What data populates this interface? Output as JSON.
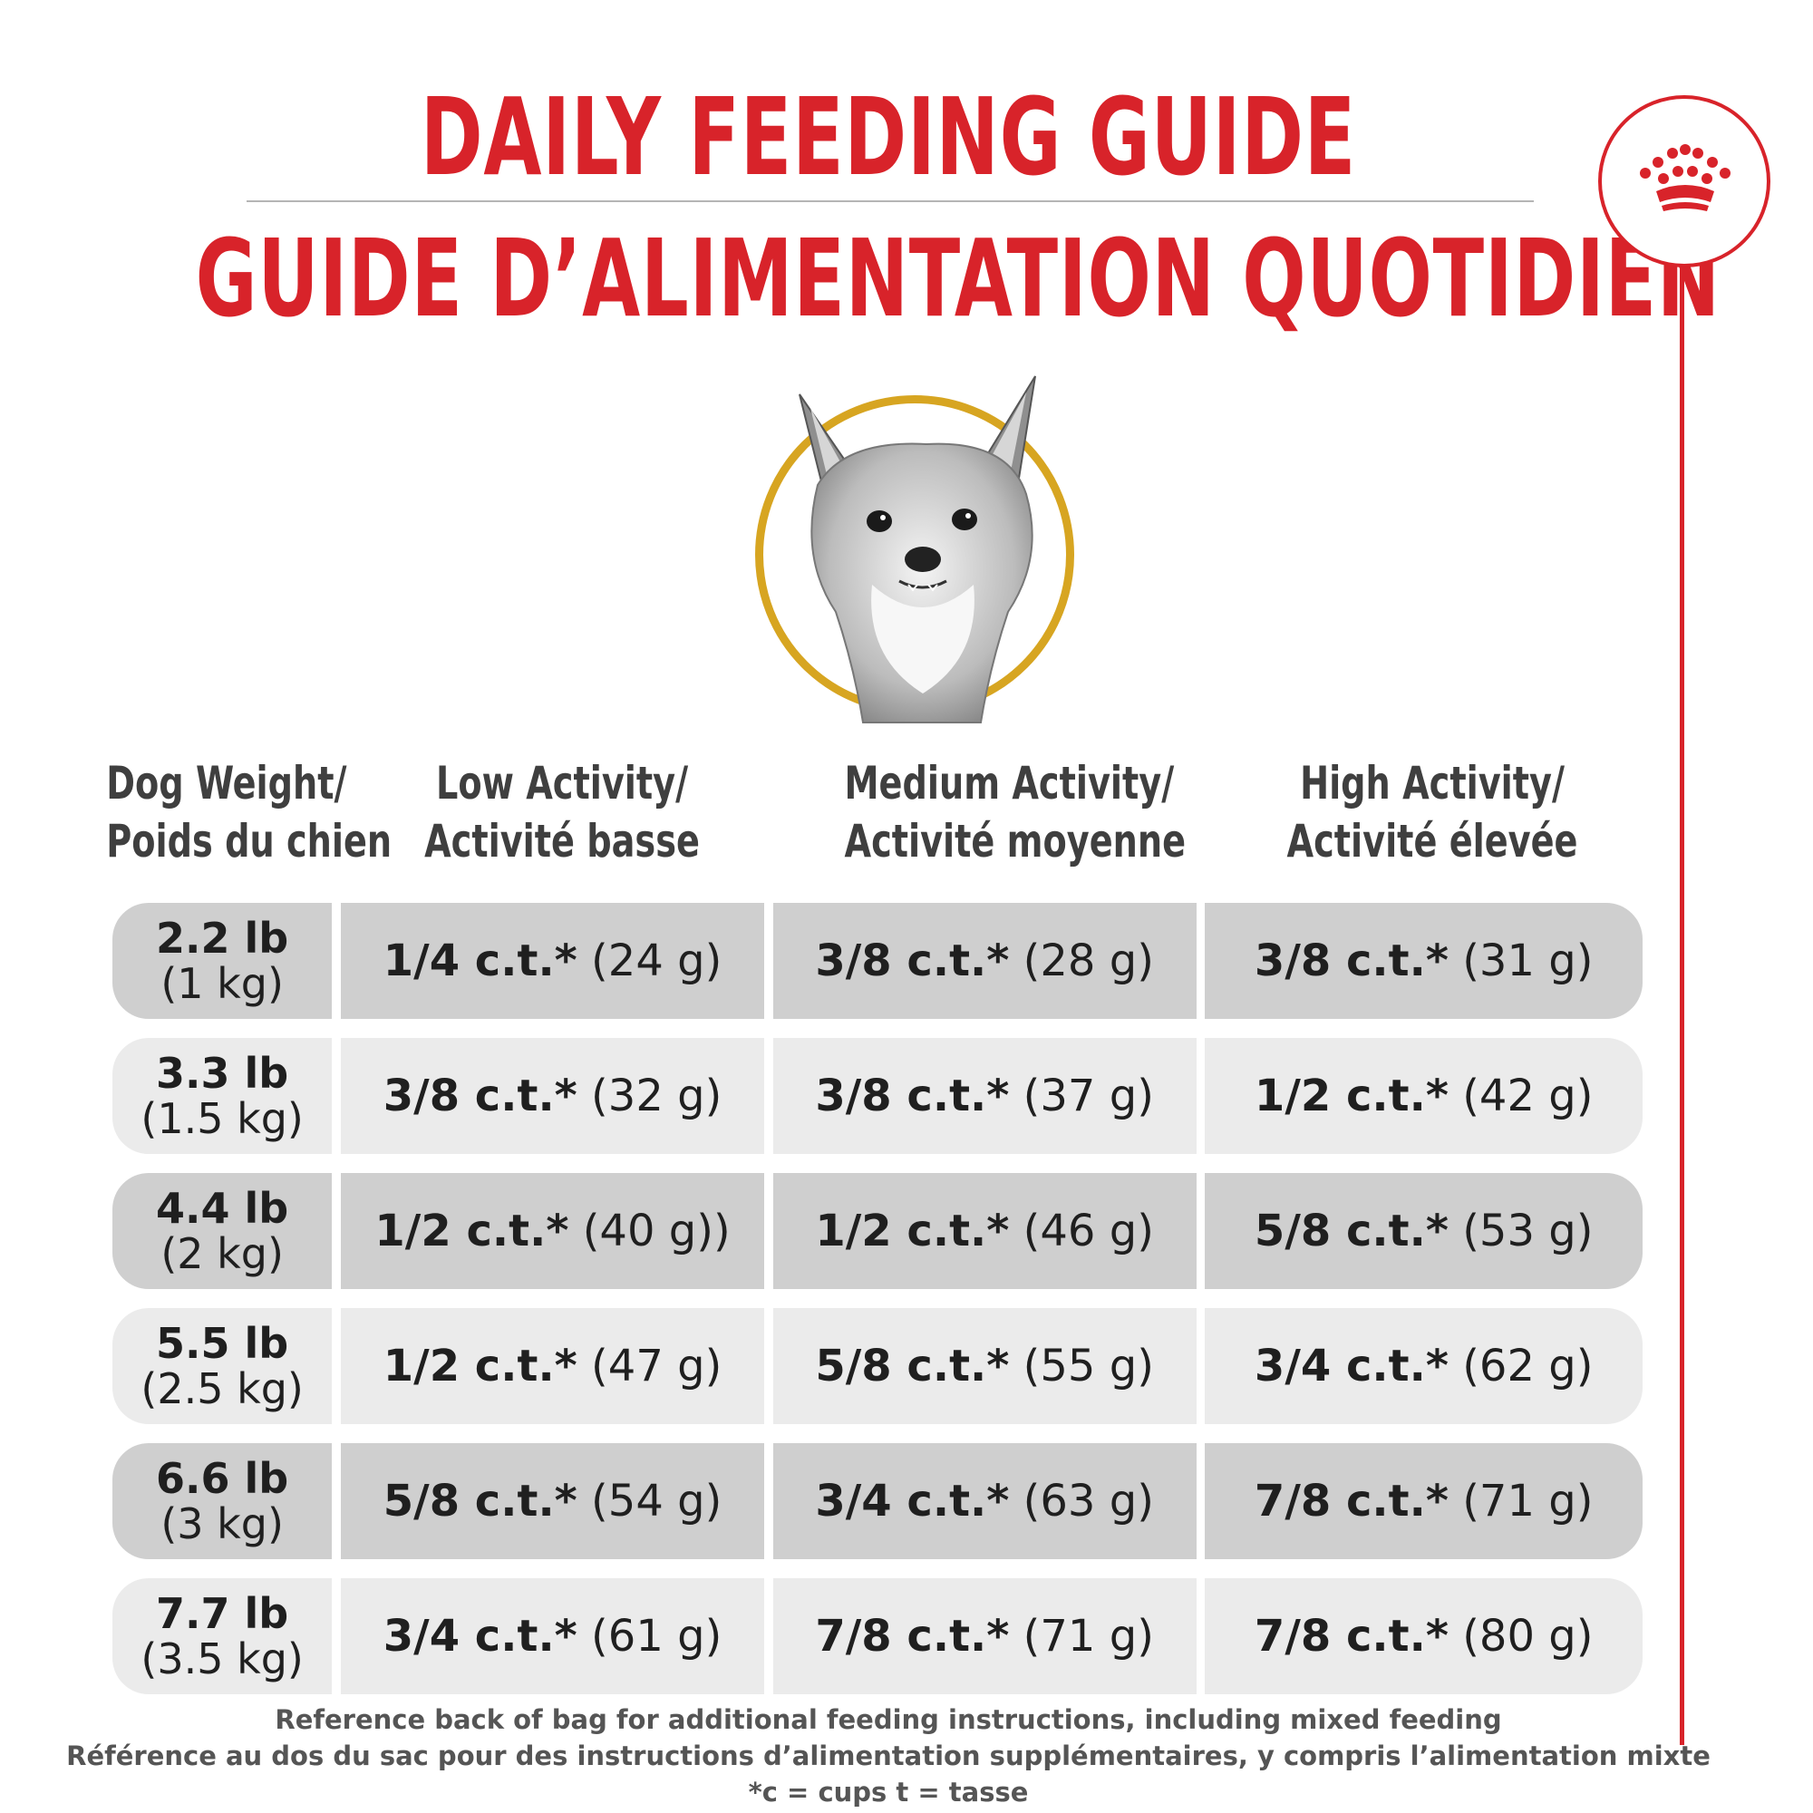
{
  "title": {
    "english": "DAILY FEEDING GUIDE",
    "french": "GUIDE D’ALIMENTATION QUOTIDIEN"
  },
  "logo": {
    "icon": "crown-icon",
    "color": "#d8232a"
  },
  "portrait": {
    "icon": "chihuahua-dog-illustration",
    "ring_color": "#d7a521"
  },
  "headers": [
    {
      "line1": "Dog Weight/",
      "line2": "Poids du chien"
    },
    {
      "line1": "Low Activity/",
      "line2": "Activité basse"
    },
    {
      "line1": "Medium Activity/",
      "line2": "Activité moyenne"
    },
    {
      "line1": "High Activity/",
      "line2": "Activité élevée"
    }
  ],
  "rows": [
    {
      "lb": "2.2 lb",
      "kg": "(1 kg)",
      "low": {
        "cups": "1/4 c.t.*",
        "grams": "(24 g)"
      },
      "medium": {
        "cups": "3/8 c.t.*",
        "grams": "(28 g)"
      },
      "high": {
        "cups": "3/8 c.t.*",
        "grams": "(31 g)"
      }
    },
    {
      "lb": "3.3 lb",
      "kg": "(1.5 kg)",
      "low": {
        "cups": "3/8 c.t.*",
        "grams": "(32 g)"
      },
      "medium": {
        "cups": "3/8 c.t.*",
        "grams": "(37 g)"
      },
      "high": {
        "cups": "1/2 c.t.*",
        "grams": "(42 g)"
      }
    },
    {
      "lb": "4.4 lb",
      "kg": "(2 kg)",
      "low": {
        "cups": "1/2 c.t.*",
        "grams": "(40 g))"
      },
      "medium": {
        "cups": "1/2 c.t.*",
        "grams": "(46 g)"
      },
      "high": {
        "cups": "5/8 c.t.*",
        "grams": "(53 g)"
      }
    },
    {
      "lb": "5.5 lb",
      "kg": "(2.5 kg)",
      "low": {
        "cups": "1/2 c.t.*",
        "grams": "(47 g)"
      },
      "medium": {
        "cups": "5/8 c.t.*",
        "grams": "(55 g)"
      },
      "high": {
        "cups": "3/4 c.t.*",
        "grams": "(62 g)"
      }
    },
    {
      "lb": "6.6 lb",
      "kg": "(3 kg)",
      "low": {
        "cups": "5/8 c.t.*",
        "grams": "(54 g)"
      },
      "medium": {
        "cups": "3/4 c.t.*",
        "grams": "(63 g)"
      },
      "high": {
        "cups": "7/8 c.t.*",
        "grams": "(71 g)"
      }
    },
    {
      "lb": "7.7 lb",
      "kg": "(3.5 kg)",
      "low": {
        "cups": "3/4 c.t.*",
        "grams": "(61 g)"
      },
      "medium": {
        "cups": "7/8 c.t.*",
        "grams": "(71 g)"
      },
      "high": {
        "cups": "7/8 c.t.*",
        "grams": "(80 g)"
      }
    }
  ],
  "notes": {
    "line1": "Reference back of bag for additional feeding instructions, including mixed feeding",
    "line2": "Référence au dos du sac pour des instructions d’alimentation supplémentaires, y compris l’alimentation mixte",
    "line3": "*c = cups t = tasse"
  },
  "colors": {
    "title_red": "#d8232a",
    "row_dark": "#cfcfcf",
    "row_light": "#ebebeb"
  }
}
